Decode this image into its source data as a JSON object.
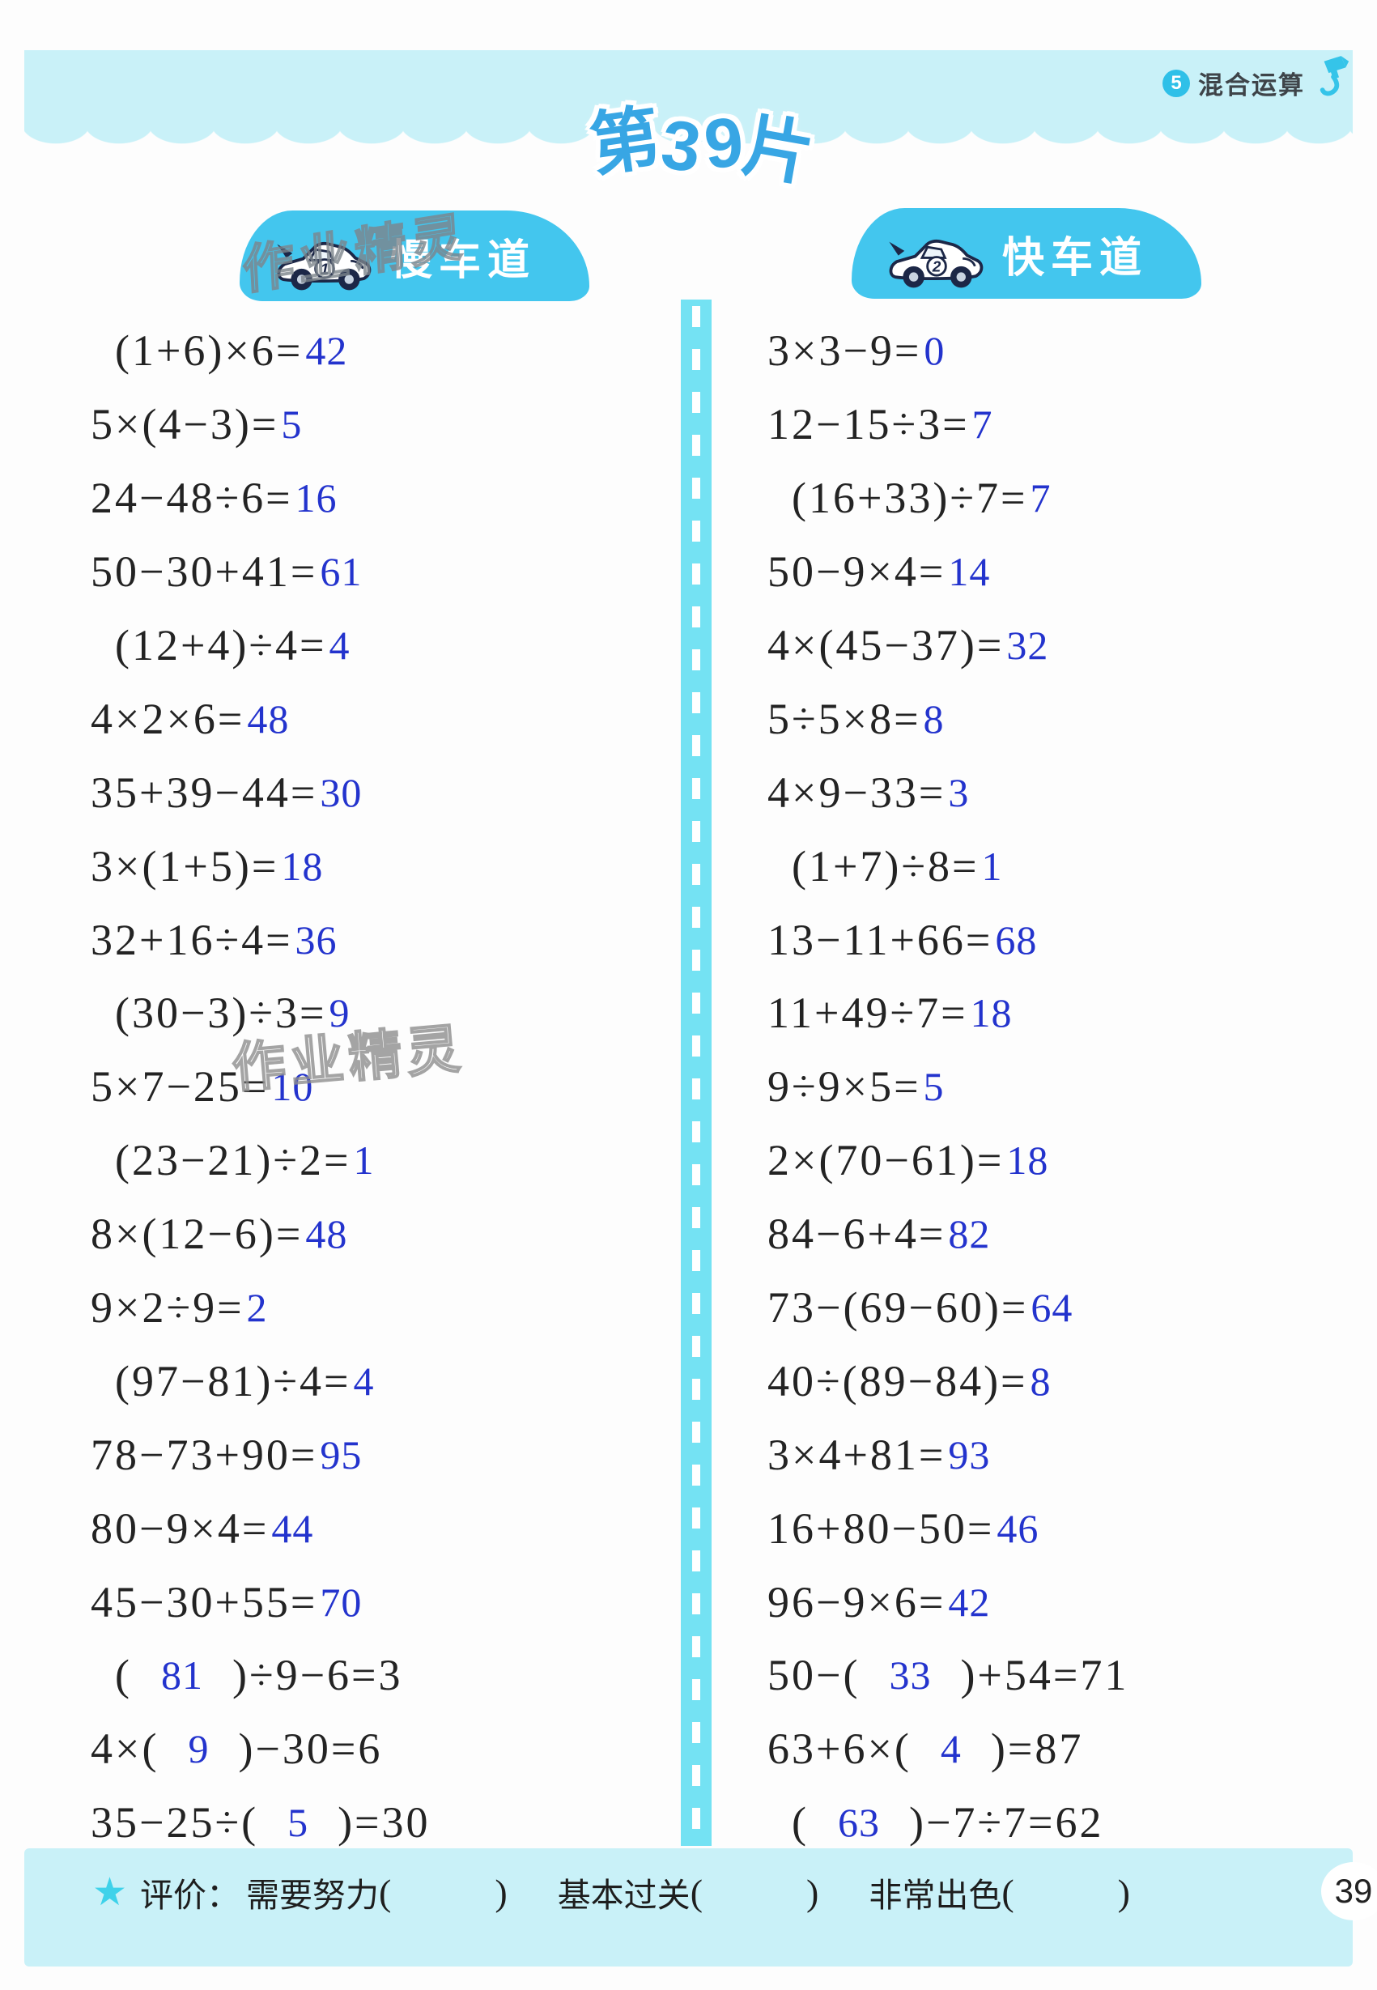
{
  "unit_badge": {
    "number": "5",
    "label": "混合运算"
  },
  "title": {
    "text": "第39片"
  },
  "watermark": {
    "text": "作业精灵"
  },
  "palette": {
    "band_cyan": "#c9f1f8",
    "lane_blob_blue": "#43c6ee",
    "divider_cyan": "#74e2f3",
    "title_blue": "#38a6e4",
    "answer_blue": "#2333cd",
    "ink_black": "#232323",
    "star_cyan": "#3ed2ea",
    "unit_circle_cyan": "#2fc0e8"
  },
  "lanes": {
    "slow": {
      "title": "慢车道",
      "car_number": "1",
      "rows": [
        [
          {
            "t": "(1+6)×6="
          },
          {
            "t": "42",
            "blue": true
          }
        ],
        [
          {
            "t": "5×(4−3)="
          },
          {
            "t": "5",
            "blue": true
          }
        ],
        [
          {
            "t": "24−48÷6="
          },
          {
            "t": "16",
            "blue": true
          }
        ],
        [
          {
            "t": "50−30+41="
          },
          {
            "t": "61",
            "blue": true
          }
        ],
        [
          {
            "t": "(12+4)÷4="
          },
          {
            "t": "4",
            "blue": true
          }
        ],
        [
          {
            "t": "4×2×6="
          },
          {
            "t": "48",
            "blue": true
          }
        ],
        [
          {
            "t": "35+39−44="
          },
          {
            "t": "30",
            "blue": true
          }
        ],
        [
          {
            "t": "3×(1+5)="
          },
          {
            "t": "18",
            "blue": true
          }
        ],
        [
          {
            "t": "32+16÷4="
          },
          {
            "t": "36",
            "blue": true
          }
        ],
        [
          {
            "t": "(30−3)÷3="
          },
          {
            "t": "9",
            "blue": true
          }
        ],
        [
          {
            "t": "5×7−25="
          },
          {
            "t": "10",
            "blue": true
          }
        ],
        [
          {
            "t": "(23−21)÷2="
          },
          {
            "t": "1",
            "blue": true
          }
        ],
        [
          {
            "t": "8×(12−6)="
          },
          {
            "t": "48",
            "blue": true
          }
        ],
        [
          {
            "t": "9×2÷9="
          },
          {
            "t": "2",
            "blue": true
          }
        ],
        [
          {
            "t": "(97−81)÷4="
          },
          {
            "t": "4",
            "blue": true
          }
        ],
        [
          {
            "t": "78−73+90="
          },
          {
            "t": "95",
            "blue": true
          }
        ],
        [
          {
            "t": "80−9×4="
          },
          {
            "t": "44",
            "blue": true
          }
        ],
        [
          {
            "t": "45−30+55="
          },
          {
            "t": "70",
            "blue": true
          }
        ],
        [
          {
            "t": "(  "
          },
          {
            "t": "81",
            "blue": true
          },
          {
            "t": "  )÷9−6=3"
          }
        ],
        [
          {
            "t": "4×(  "
          },
          {
            "t": "9",
            "blue": true
          },
          {
            "t": "  )−30=6"
          }
        ],
        [
          {
            "t": "35−25÷(  "
          },
          {
            "t": "5",
            "blue": true
          },
          {
            "t": "  )=30"
          }
        ]
      ]
    },
    "fast": {
      "title": "快车道",
      "car_number": "2",
      "rows": [
        [
          {
            "t": "3×3−9="
          },
          {
            "t": "0",
            "blue": true
          }
        ],
        [
          {
            "t": "12−15÷3="
          },
          {
            "t": "7",
            "blue": true
          }
        ],
        [
          {
            "t": "(16+33)÷7="
          },
          {
            "t": "7",
            "blue": true
          }
        ],
        [
          {
            "t": "50−9×4="
          },
          {
            "t": "14",
            "blue": true
          }
        ],
        [
          {
            "t": "4×(45−37)="
          },
          {
            "t": "32",
            "blue": true
          }
        ],
        [
          {
            "t": "5÷5×8="
          },
          {
            "t": "8",
            "blue": true
          }
        ],
        [
          {
            "t": "4×9−33="
          },
          {
            "t": "3",
            "blue": true
          }
        ],
        [
          {
            "t": "(1+7)÷8="
          },
          {
            "t": "1",
            "blue": true
          }
        ],
        [
          {
            "t": "13−11+66="
          },
          {
            "t": "68",
            "blue": true
          }
        ],
        [
          {
            "t": "11+49÷7="
          },
          {
            "t": "18",
            "blue": true
          }
        ],
        [
          {
            "t": "9÷9×5="
          },
          {
            "t": "5",
            "blue": true
          }
        ],
        [
          {
            "t": "2×(70−61)="
          },
          {
            "t": "18",
            "blue": true
          }
        ],
        [
          {
            "t": "84−6+4="
          },
          {
            "t": "82",
            "blue": true
          }
        ],
        [
          {
            "t": "73−(69−60)="
          },
          {
            "t": "64",
            "blue": true
          }
        ],
        [
          {
            "t": "40÷(89−84)="
          },
          {
            "t": "8",
            "blue": true
          }
        ],
        [
          {
            "t": "3×4+81="
          },
          {
            "t": "93",
            "blue": true
          }
        ],
        [
          {
            "t": "16+80−50="
          },
          {
            "t": "46",
            "blue": true
          }
        ],
        [
          {
            "t": "96−9×6="
          },
          {
            "t": "42",
            "blue": true
          }
        ],
        [
          {
            "t": "50−(  "
          },
          {
            "t": "33",
            "blue": true
          },
          {
            "t": "  )+54=71"
          }
        ],
        [
          {
            "t": "63+6×(  "
          },
          {
            "t": "4",
            "blue": true
          },
          {
            "t": "  )=87"
          }
        ],
        [
          {
            "t": "(  "
          },
          {
            "t": "63",
            "blue": true
          },
          {
            "t": "  )−7÷7=62"
          }
        ]
      ]
    }
  },
  "footer": {
    "star_icon": "★",
    "eval_label": "评价：",
    "options": [
      "需要努力",
      "基本过关",
      "非常出色"
    ],
    "paren_open": "(",
    "paren_close": ")",
    "page_number": "39"
  }
}
